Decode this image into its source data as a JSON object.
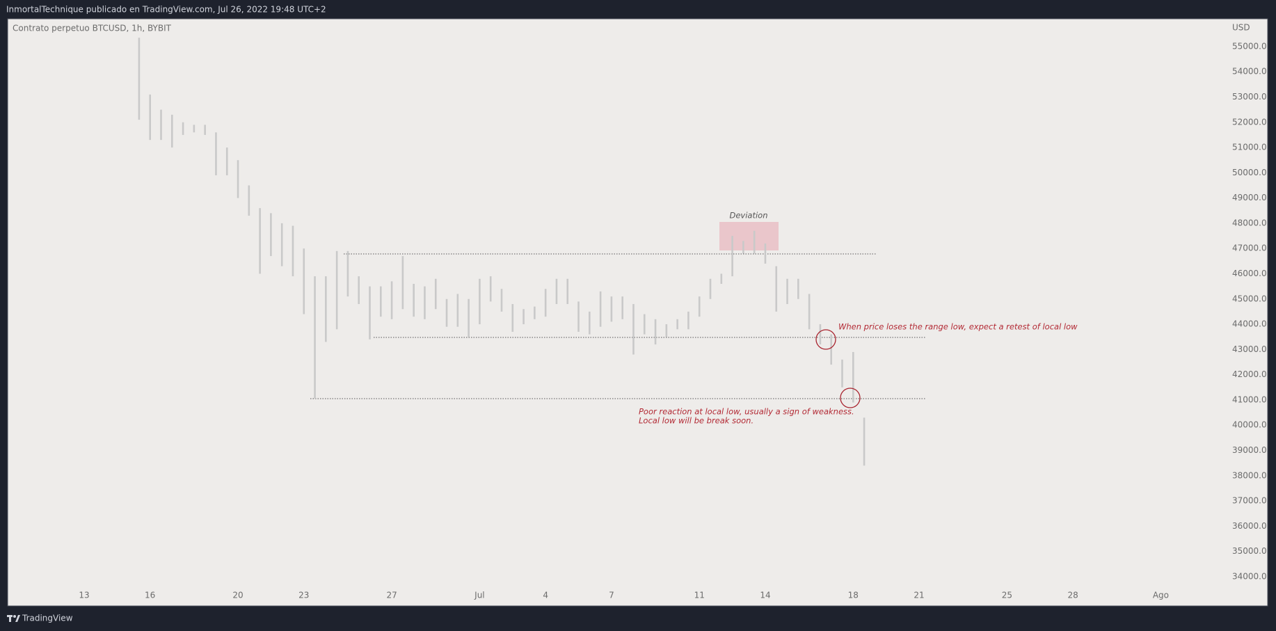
{
  "header": {
    "title": "InmortalTechnique publicado en TradingView.com, Jul 26, 2022 19:48 UTC+2"
  },
  "footer": {
    "brand": "TradingView"
  },
  "chart_data": {
    "type": "ohlc",
    "title": "Contrato perpetuo BTCUSD, 1h, BYBIT",
    "y_unit": "USD",
    "color": "#c9c9c9",
    "x": [
      15.5,
      16,
      16.5,
      17,
      17.5,
      18,
      18.5,
      19,
      19.5,
      20,
      20.5,
      21,
      21.5,
      22,
      22.5,
      23,
      23.5,
      24,
      24.5,
      25,
      25.5,
      26,
      26.5,
      27,
      27.5,
      28,
      28.5,
      29,
      29.5,
      30,
      30.5,
      31,
      31.5,
      32,
      32.5,
      33,
      33.5,
      34,
      34.5,
      35,
      35.5,
      36,
      36.5,
      37,
      37.5,
      38,
      38.5,
      39,
      39.5,
      40,
      40.5,
      41,
      41.5,
      42,
      42.5,
      43,
      43.5,
      44,
      44.5,
      45,
      45.5,
      46,
      46.5,
      47,
      47.5,
      48,
      48.5
    ],
    "high": [
      55350,
      53100,
      52500,
      52300,
      52000,
      51900,
      51900,
      51600,
      51000,
      50500,
      49500,
      48600,
      48400,
      48000,
      47900,
      47000,
      45900,
      45900,
      46900,
      46900,
      45900,
      45500,
      45500,
      45700,
      46700,
      45600,
      45500,
      45800,
      45000,
      45200,
      45000,
      45800,
      45900,
      45400,
      44800,
      44600,
      44700,
      45400,
      45800,
      45800,
      44900,
      44500,
      45300,
      45100,
      45100,
      44800,
      44400,
      44200,
      44000,
      44200,
      44500,
      45100,
      45800,
      46000,
      47500,
      47300,
      47700,
      47200,
      46300,
      45800,
      45800,
      45200,
      44000,
      43600,
      42600,
      42900,
      40300
    ],
    "low": [
      52100,
      51300,
      51300,
      51000,
      51500,
      51600,
      51500,
      49900,
      49900,
      49000,
      48300,
      46000,
      46700,
      46300,
      45900,
      44400,
      41050,
      43300,
      43800,
      45100,
      44800,
      43400,
      44300,
      44200,
      44600,
      44300,
      44200,
      44600,
      43900,
      43900,
      43500,
      44000,
      44900,
      44500,
      43700,
      44000,
      44200,
      44300,
      44800,
      44800,
      43700,
      43600,
      43900,
      44100,
      44200,
      42800,
      43600,
      43200,
      43500,
      43800,
      43800,
      44300,
      45000,
      45600,
      45900,
      46800,
      46800,
      46400,
      44500,
      44800,
      45000,
      43800,
      43200,
      42400,
      41500,
      40900,
      38400
    ],
    "xlim": [
      9.55,
      64.9
    ],
    "xticks": [
      13,
      16,
      20,
      23,
      27,
      {
        "value": 31,
        "label": "Jul"
      },
      {
        "value": 34,
        "label": "4"
      },
      {
        "value": 37,
        "label": "7"
      },
      {
        "value": 41,
        "label": "11"
      },
      {
        "value": 44,
        "label": "14"
      },
      {
        "value": 48,
        "label": "18"
      },
      {
        "value": 51,
        "label": "21"
      },
      {
        "value": 55,
        "label": "25"
      },
      {
        "value": 58,
        "label": "28"
      },
      {
        "value": 62,
        "label": "Ago"
      }
    ],
    "ylim": [
      32840,
      56100
    ],
    "yticks": [
      {
        "value": 34000,
        "label": "34000.0"
      },
      {
        "value": 35000,
        "label": "35000.0"
      },
      {
        "value": 36000,
        "label": "36000.0"
      },
      {
        "value": 37000,
        "label": "37000.0"
      },
      {
        "value": 38000,
        "label": "38000.0"
      },
      {
        "value": 39000,
        "label": "39000.0"
      },
      {
        "value": 40000,
        "label": "40000.0"
      },
      {
        "value": 41000,
        "label": "41000.0"
      },
      {
        "value": 42000,
        "label": "42000.0"
      },
      {
        "value": 43000,
        "label": "43000.0"
      },
      {
        "value": 44000,
        "label": "44000.0"
      },
      {
        "value": 45000,
        "label": "45000.0"
      },
      {
        "value": 46000,
        "label": "46000.0"
      },
      {
        "value": 47000,
        "label": "47000.0"
      },
      {
        "value": 48000,
        "label": "48000.0"
      },
      {
        "value": 49000,
        "label": "49000.0"
      },
      {
        "value": 50000,
        "label": "50000.0"
      },
      {
        "value": 51000,
        "label": "51000.0"
      },
      {
        "value": 52000,
        "label": "52000.0"
      },
      {
        "value": 53000,
        "label": "53000.0"
      },
      {
        "value": 54000,
        "label": "54000.0"
      },
      {
        "value": 55000,
        "label": "55000.0"
      }
    ],
    "grid": false,
    "annotations": [
      "Deviation",
      "When price loses the range low, expect a retest of local low",
      "Poor reaction at local low, usually a sign of weakness.",
      "Local low will be break soon."
    ]
  }
}
